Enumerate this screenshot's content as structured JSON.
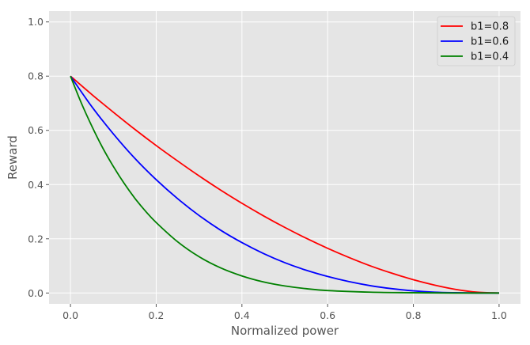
{
  "chart_data": {
    "type": "line",
    "title": "",
    "xlabel": "Normalized power",
    "ylabel": "Reward",
    "xlim": [
      -0.05,
      1.05
    ],
    "ylim": [
      -0.04,
      1.04
    ],
    "xticks": [
      "0.0",
      "0.2",
      "0.4",
      "0.6",
      "0.8",
      "1.0"
    ],
    "yticks": [
      "0.0",
      "0.2",
      "0.4",
      "0.6",
      "0.8",
      "1.0"
    ],
    "grid": true,
    "legend_position": "top-right",
    "series": [
      {
        "name": "b1=0.8",
        "color": "#ff0000",
        "x": [
          0.0,
          0.05,
          0.1,
          0.15,
          0.2,
          0.25,
          0.3,
          0.35,
          0.4,
          0.45,
          0.5,
          0.55,
          0.6,
          0.65,
          0.7,
          0.75,
          0.8,
          0.85,
          0.9,
          0.95,
          1.0
        ],
        "y": [
          0.8,
          0.732,
          0.667,
          0.604,
          0.544,
          0.487,
          0.432,
          0.38,
          0.331,
          0.285,
          0.242,
          0.202,
          0.165,
          0.131,
          0.1,
          0.073,
          0.049,
          0.029,
          0.013,
          0.003,
          0.0
        ]
      },
      {
        "name": "b1=0.6",
        "color": "#0000ff",
        "x": [
          0.0,
          0.05,
          0.1,
          0.15,
          0.2,
          0.25,
          0.3,
          0.35,
          0.4,
          0.45,
          0.5,
          0.55,
          0.6,
          0.65,
          0.7,
          0.75,
          0.8,
          0.85,
          0.9,
          0.95,
          1.0
        ],
        "y": [
          0.8,
          0.687,
          0.587,
          0.497,
          0.418,
          0.348,
          0.286,
          0.232,
          0.186,
          0.146,
          0.112,
          0.084,
          0.061,
          0.042,
          0.027,
          0.016,
          0.008,
          0.003,
          0.001,
          0.0,
          0.0
        ]
      },
      {
        "name": "b1=0.4",
        "color": "#008000",
        "x": [
          0.0,
          0.025,
          0.05,
          0.075,
          0.1,
          0.125,
          0.15,
          0.175,
          0.2,
          0.25,
          0.3,
          0.35,
          0.4,
          0.45,
          0.5,
          0.55,
          0.6,
          0.7,
          0.8,
          0.9,
          1.0
        ],
        "y": [
          0.8,
          0.702,
          0.615,
          0.536,
          0.467,
          0.405,
          0.35,
          0.302,
          0.26,
          0.189,
          0.134,
          0.093,
          0.063,
          0.041,
          0.026,
          0.016,
          0.009,
          0.003,
          0.001,
          0.0,
          0.0
        ]
      }
    ]
  }
}
